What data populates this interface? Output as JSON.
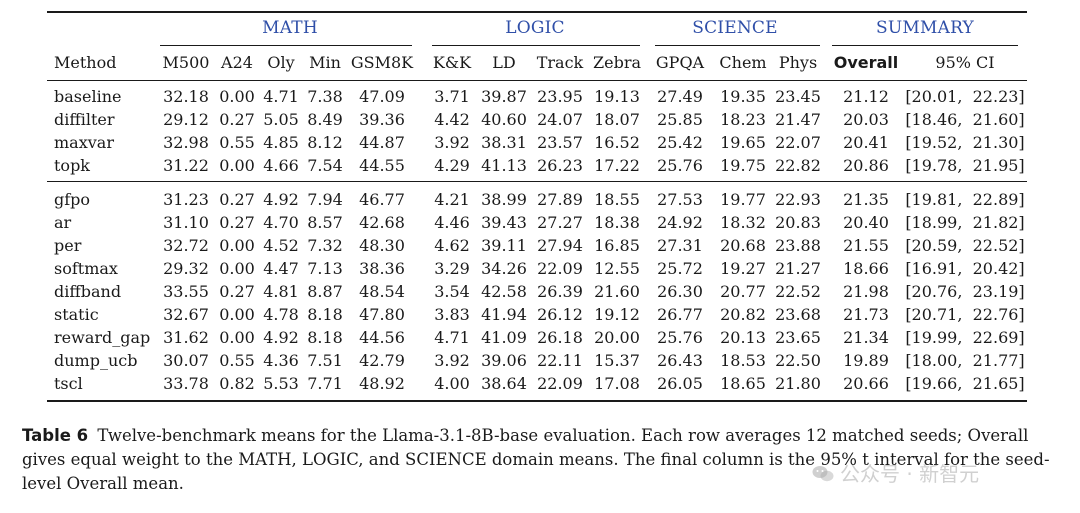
{
  "table": {
    "groups": [
      {
        "name": "MATH",
        "color": "#2f4fa8"
      },
      {
        "name": "LOGIC",
        "color": "#2f4fa8"
      },
      {
        "name": "SCIENCE",
        "color": "#2f4fa8"
      },
      {
        "name": "SUMMARY",
        "color": "#2f4fa8"
      }
    ],
    "method_header": "Method",
    "columns": [
      "M500",
      "A24",
      "Oly",
      "Min",
      "GSM8K",
      "K&K",
      "LD",
      "Track",
      "Zebra",
      "GPQA",
      "Chem",
      "Phys",
      "Overall",
      "95% CI"
    ],
    "bold_column": "Overall",
    "row_groups": [
      [
        {
          "method": "baseline",
          "values": [
            "32.18",
            "0.00",
            "4.71",
            "7.38",
            "47.09",
            "3.71",
            "39.87",
            "23.95",
            "19.13",
            "27.49",
            "19.35",
            "23.45",
            "21.12",
            "[20.01,  22.23]"
          ]
        },
        {
          "method": "diffilter",
          "values": [
            "29.12",
            "0.27",
            "5.05",
            "8.49",
            "39.36",
            "4.42",
            "40.60",
            "24.07",
            "18.07",
            "25.85",
            "18.23",
            "21.47",
            "20.03",
            "[18.46,  21.60]"
          ]
        },
        {
          "method": "maxvar",
          "values": [
            "32.98",
            "0.55",
            "4.85",
            "8.12",
            "44.87",
            "3.92",
            "38.31",
            "23.57",
            "16.52",
            "25.42",
            "19.65",
            "22.07",
            "20.41",
            "[19.52,  21.30]"
          ]
        },
        {
          "method": "topk",
          "values": [
            "31.22",
            "0.00",
            "4.66",
            "7.54",
            "44.55",
            "4.29",
            "41.13",
            "26.23",
            "17.22",
            "25.76",
            "19.75",
            "22.82",
            "20.86",
            "[19.78,  21.95]"
          ]
        }
      ],
      [
        {
          "method": "gfpo",
          "values": [
            "31.23",
            "0.27",
            "4.92",
            "7.94",
            "46.77",
            "4.21",
            "38.99",
            "27.89",
            "18.55",
            "27.53",
            "19.77",
            "22.93",
            "21.35",
            "[19.81,  22.89]"
          ]
        },
        {
          "method": "ar",
          "values": [
            "31.10",
            "0.27",
            "4.70",
            "8.57",
            "42.68",
            "4.46",
            "39.43",
            "27.27",
            "18.38",
            "24.92",
            "18.32",
            "20.83",
            "20.40",
            "[18.99,  21.82]"
          ]
        },
        {
          "method": "per",
          "values": [
            "32.72",
            "0.00",
            "4.52",
            "7.32",
            "48.30",
            "4.62",
            "39.11",
            "27.94",
            "16.85",
            "27.31",
            "20.68",
            "23.88",
            "21.55",
            "[20.59,  22.52]"
          ]
        },
        {
          "method": "softmax",
          "values": [
            "29.32",
            "0.00",
            "4.47",
            "7.13",
            "38.36",
            "3.29",
            "34.26",
            "22.09",
            "12.55",
            "25.72",
            "19.27",
            "21.27",
            "18.66",
            "[16.91,  20.42]"
          ]
        },
        {
          "method": "diffband",
          "values": [
            "33.55",
            "0.27",
            "4.81",
            "8.87",
            "48.54",
            "3.54",
            "42.58",
            "26.39",
            "21.60",
            "26.30",
            "20.77",
            "22.52",
            "21.98",
            "[20.76,  23.19]"
          ]
        },
        {
          "method": "static",
          "values": [
            "32.67",
            "0.00",
            "4.78",
            "8.18",
            "47.80",
            "3.83",
            "41.94",
            "26.12",
            "19.12",
            "26.77",
            "20.82",
            "23.68",
            "21.73",
            "[20.71,  22.76]"
          ]
        },
        {
          "method": "reward_gap",
          "values": [
            "31.62",
            "0.00",
            "4.92",
            "8.18",
            "44.56",
            "4.71",
            "41.09",
            "26.18",
            "20.00",
            "25.76",
            "20.13",
            "23.65",
            "21.34",
            "[19.99,  22.69]"
          ]
        },
        {
          "method": "dump_ucb",
          "values": [
            "30.07",
            "0.55",
            "4.36",
            "7.51",
            "42.79",
            "3.92",
            "39.06",
            "22.11",
            "15.37",
            "26.43",
            "18.53",
            "22.50",
            "19.89",
            "[18.00,  21.77]"
          ]
        },
        {
          "method": "tscl",
          "values": [
            "33.78",
            "0.82",
            "5.53",
            "7.71",
            "48.92",
            "4.00",
            "38.64",
            "22.09",
            "17.08",
            "26.05",
            "18.65",
            "21.80",
            "20.66",
            "[19.66,  21.65]"
          ]
        }
      ]
    ]
  },
  "caption": {
    "label": "Table 6",
    "text": "Twelve-benchmark means for the Llama-3.1-8B-base evaluation. Each row averages 12 matched seeds; Overall gives equal weight to the MATH, LOGIC, and SCIENCE domain means. The final column is the 95% t interval for the seed-level Overall mean."
  },
  "watermark": {
    "text": "公众号 · 新智元"
  }
}
